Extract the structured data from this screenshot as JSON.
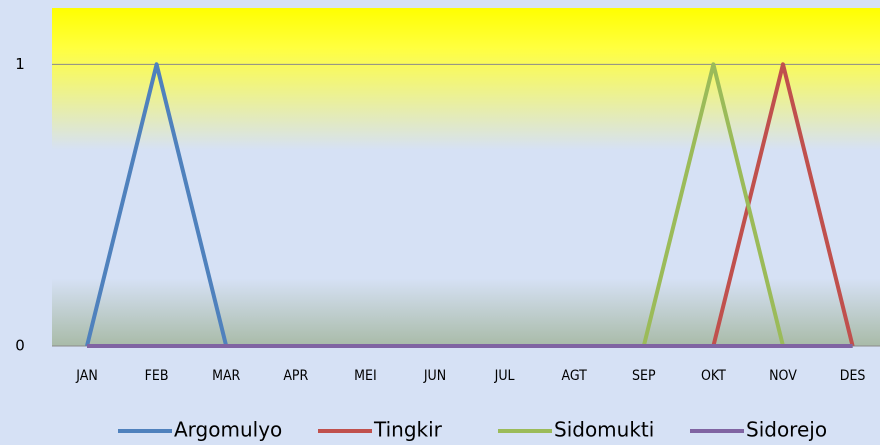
{
  "chart_data": {
    "type": "line",
    "categories": [
      "JAN",
      "FEB",
      "MAR",
      "APR",
      "MEI",
      "JUN",
      "JUL",
      "AGT",
      "SEP",
      "OKT",
      "NOV",
      "DES"
    ],
    "series": [
      {
        "name": "Argomulyo",
        "color": "#4f81bd",
        "values": [
          0,
          1,
          0,
          0,
          0,
          0,
          0,
          0,
          0,
          0,
          0,
          0
        ]
      },
      {
        "name": "Tingkir",
        "color": "#c0504d",
        "values": [
          0,
          0,
          0,
          0,
          0,
          0,
          0,
          0,
          0,
          0,
          1,
          0
        ]
      },
      {
        "name": "Sidomukti",
        "color": "#9bbb59",
        "values": [
          0,
          0,
          0,
          0,
          0,
          0,
          0,
          0,
          0,
          1,
          0,
          0
        ]
      },
      {
        "name": "Sidorejo",
        "color": "#8064a2",
        "values": [
          0,
          0,
          0,
          0,
          0,
          0,
          0,
          0,
          0,
          0,
          0,
          0
        ]
      }
    ],
    "ylim": [
      0,
      1.2
    ],
    "yticks": [
      0,
      1
    ],
    "grid": true,
    "legend": "bottom"
  }
}
